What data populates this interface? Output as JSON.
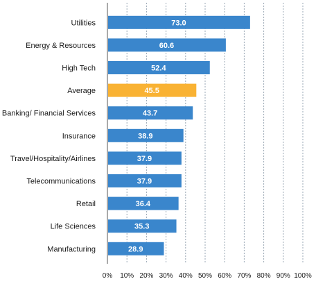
{
  "chart_data": {
    "type": "bar",
    "orientation": "horizontal",
    "categories": [
      "Utilities",
      "Energy & Resources",
      "High Tech",
      "Average",
      "Banking/ Financial Services",
      "Insurance",
      "Travel/Hospitality/Airlines",
      "Telecommunications",
      "Retail",
      "Life Sciences",
      "Manufacturing"
    ],
    "values": [
      73.0,
      60.6,
      52.4,
      45.5,
      43.7,
      38.9,
      37.9,
      37.9,
      36.4,
      35.3,
      28.9
    ],
    "value_labels": [
      "73.0",
      "60.6",
      "52.4",
      "45.5",
      "43.7",
      "38.9",
      "37.9",
      "37.9",
      "36.4",
      "35.3",
      "28.9"
    ],
    "highlight_category": "Average",
    "xlim": [
      0,
      100
    ],
    "x_ticks": [
      0,
      10,
      20,
      30,
      40,
      50,
      60,
      70,
      80,
      90,
      100
    ],
    "x_tick_labels": [
      "0%",
      "10%",
      "20%",
      "30%",
      "40%",
      "50%",
      "60%",
      "70%",
      "80%",
      "90%",
      "100%"
    ],
    "grid": true,
    "colors": {
      "bar": "#3a86cc",
      "highlight": "#f9b233"
    }
  }
}
